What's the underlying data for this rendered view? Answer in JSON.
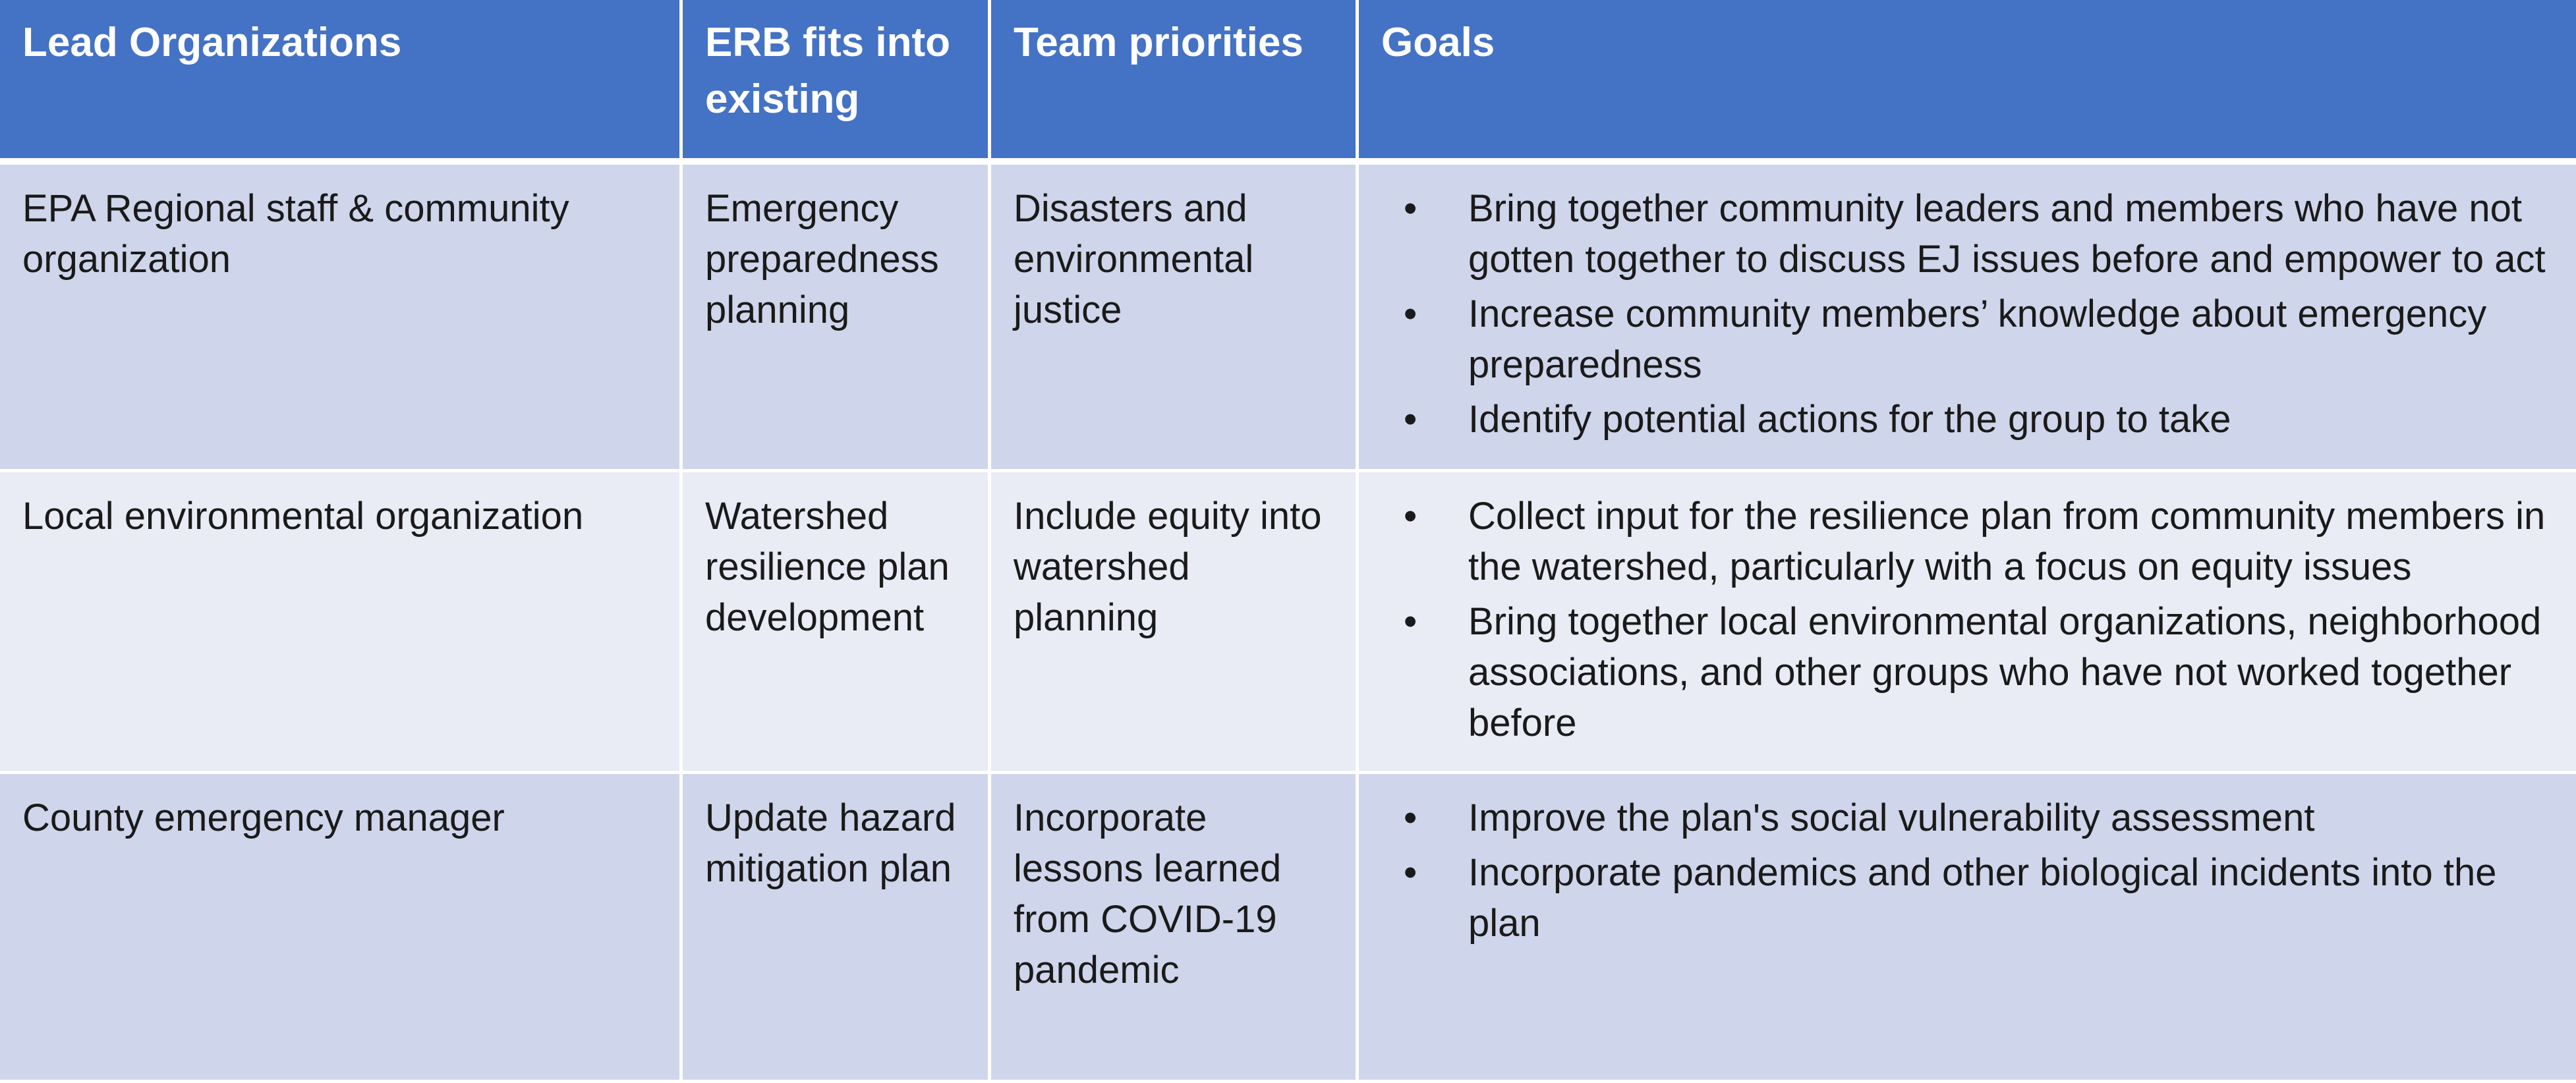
{
  "table": {
    "headers": [
      "Lead Organizations",
      "ERB fits into existing",
      "Team priorities",
      "Goals"
    ],
    "rows": [
      {
        "lead": "EPA Regional staff & community organization",
        "erb": "Emergency preparedness planning",
        "priority": "Disasters and environmental justice",
        "goals": [
          "Bring together community leaders and members who have not gotten together to discuss EJ issues before and empower to act",
          "Increase community members’ knowledge about emergency preparedness",
          "Identify potential actions for the group to take"
        ]
      },
      {
        "lead": "Local environmental organization",
        "erb": "Watershed resilience plan development",
        "priority": "Include equity into watershed planning",
        "goals": [
          "Collect input for the resilience plan from community members in the watershed, particularly with a focus on equity issues",
          "Bring together local environmental organizations, neighborhood associations, and other groups who have not worked together before"
        ]
      },
      {
        "lead": "County emergency manager",
        "erb": "Update hazard mitigation plan",
        "priority": "Incorporate lessons learned from COVID-19 pandemic",
        "goals": [
          "Improve the plan's social vulnerability assessment",
          "Incorporate pandemics and other biological incidents into the plan"
        ]
      }
    ]
  },
  "colors": {
    "header_bg": "#4472c4",
    "row_dark": "#cfd5ea",
    "row_light": "#e9ebf5",
    "header_text": "#ffffff"
  }
}
